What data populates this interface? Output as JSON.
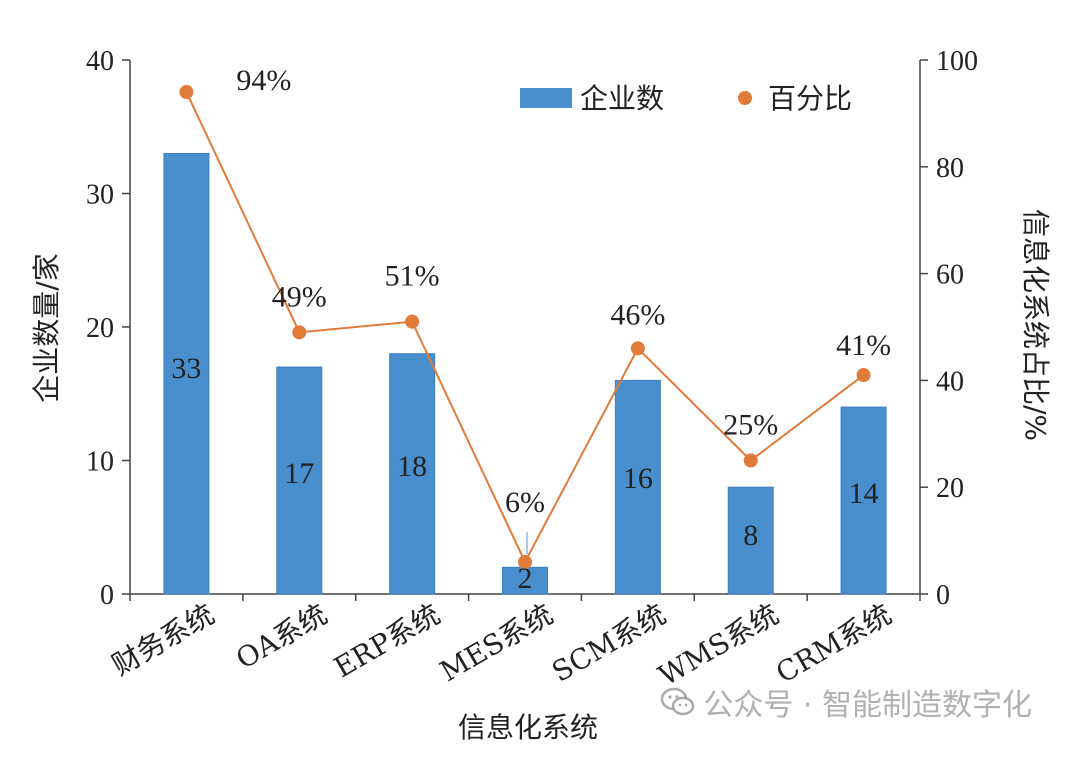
{
  "chart_data": {
    "type": "bar",
    "categories": [
      "财务系统",
      "OA系统",
      "ERP系统",
      "MES系统",
      "SCM系统",
      "WMS系统",
      "CRM系统"
    ],
    "series": [
      {
        "name": "企业数",
        "kind": "bar",
        "axis": "left",
        "values": [
          33,
          17,
          18,
          2,
          16,
          8,
          14
        ],
        "labels": [
          "33",
          "17",
          "18",
          "2",
          "16",
          "8",
          "14"
        ]
      },
      {
        "name": "百分比",
        "kind": "line",
        "axis": "right",
        "values": [
          94,
          49,
          51,
          6,
          46,
          25,
          41
        ],
        "labels": [
          "94%",
          "49%",
          "51%",
          "6%",
          "46%",
          "25%",
          "41%"
        ]
      }
    ],
    "xlabel": "信息化系统",
    "ylabel": "企业数量/家",
    "y2label": "信息化系统占比/%",
    "ylim": [
      0,
      40
    ],
    "y2lim": [
      0,
      100
    ],
    "yticks": [
      0,
      10,
      20,
      30,
      40
    ],
    "y2ticks": [
      0,
      20,
      40,
      60,
      80,
      100
    ],
    "legend_position": "top-right",
    "grid": false,
    "colors": {
      "bar": "#4a8fcd",
      "bar_edge": "#3d7fc0",
      "line": "#e07b39",
      "axis": "#444444"
    }
  },
  "watermark": {
    "icon": "wechat-icon",
    "text": "公众号 · 智能制造数字化"
  }
}
